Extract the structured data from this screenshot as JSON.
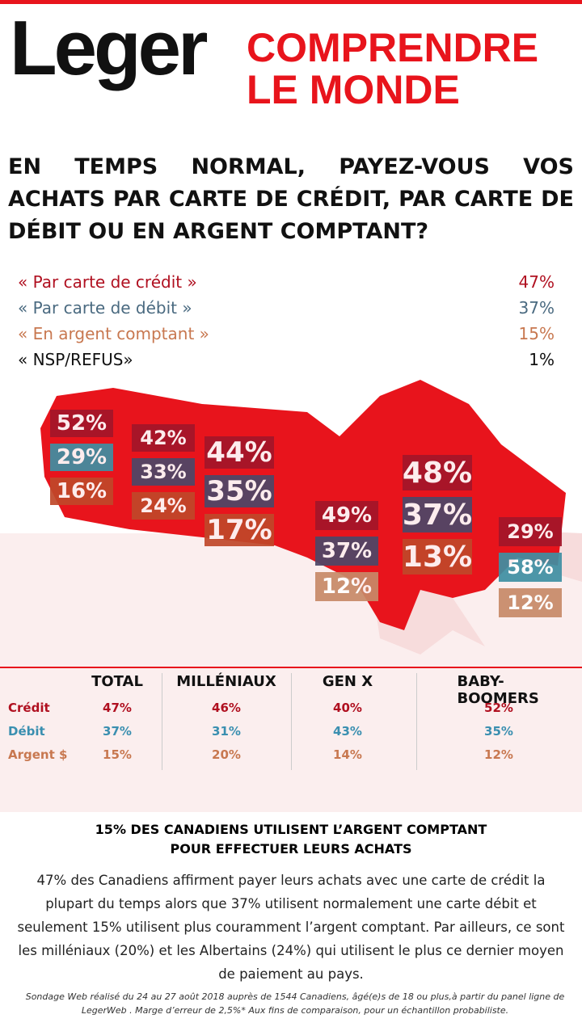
{
  "logo": {
    "brand": "Leger",
    "tagline": [
      "COMPRENDRE",
      "LE MONDE"
    ]
  },
  "question": "EN TEMPS NORMAL, PAYEZ-VOUS VOS ACHATS PAR CARTE DE CRÉDIT, PAR CARTE DE DÉBIT OU EN ARGENT COMPTANT?",
  "answers": [
    {
      "label": "« Par carte de crédit »",
      "value": "47%"
    },
    {
      "label": "« Par carte de débit »",
      "value": "37%"
    },
    {
      "label": "« En argent comptant »",
      "value": "15%"
    },
    {
      "label": "« NSP/REFUS»",
      "value": "1%"
    }
  ],
  "regions": [
    [
      "52%",
      "29%",
      "16%"
    ],
    [
      "42%",
      "33%",
      "24%"
    ],
    [
      "44%",
      "35%",
      "17%"
    ],
    [
      "49%",
      "37%",
      "12%"
    ],
    [
      "48%",
      "37%",
      "13%"
    ],
    [
      "29%",
      "58%",
      "12%"
    ]
  ],
  "table": {
    "headers": [
      "TOTAL",
      "MILLÉNIAUX",
      "GEN X",
      "BABY-BOOMERS"
    ],
    "rows": [
      {
        "label": "Crédit",
        "cells": [
          "47%",
          "46%",
          "40%",
          "52%"
        ]
      },
      {
        "label": "Débit",
        "cells": [
          "37%",
          "31%",
          "43%",
          "35%"
        ]
      },
      {
        "label": "Argent $",
        "cells": [
          "15%",
          "20%",
          "14%",
          "12%"
        ]
      }
    ]
  },
  "headline": [
    "15% DES CANADIENS UTILISENT L’ARGENT COMPTANT",
    "POUR EFFECTUER LEURS ACHATS"
  ],
  "body": "47% des Canadiens affirment payer leurs achats avec une carte de crédit la plupart du temps alors que 37% utilisent normalement une carte débit et seulement 15% utilisent plus couramment l’argent comptant. Par ailleurs, ce sont les milléniaux (20%) et les Albertains (24%) qui utilisent le plus ce dernier moyen de paiement au pays.",
  "footnote": "Sondage Web réalisé du 24 au 27 août 2018 auprès de 1544 Canadiens, âgé(e)s de 18 ou plus,à partir du panel ligne de LegerWeb . Marge d’erreur de 2,5%* Aux fins de comparaison, pour un échantillon probabiliste."
}
